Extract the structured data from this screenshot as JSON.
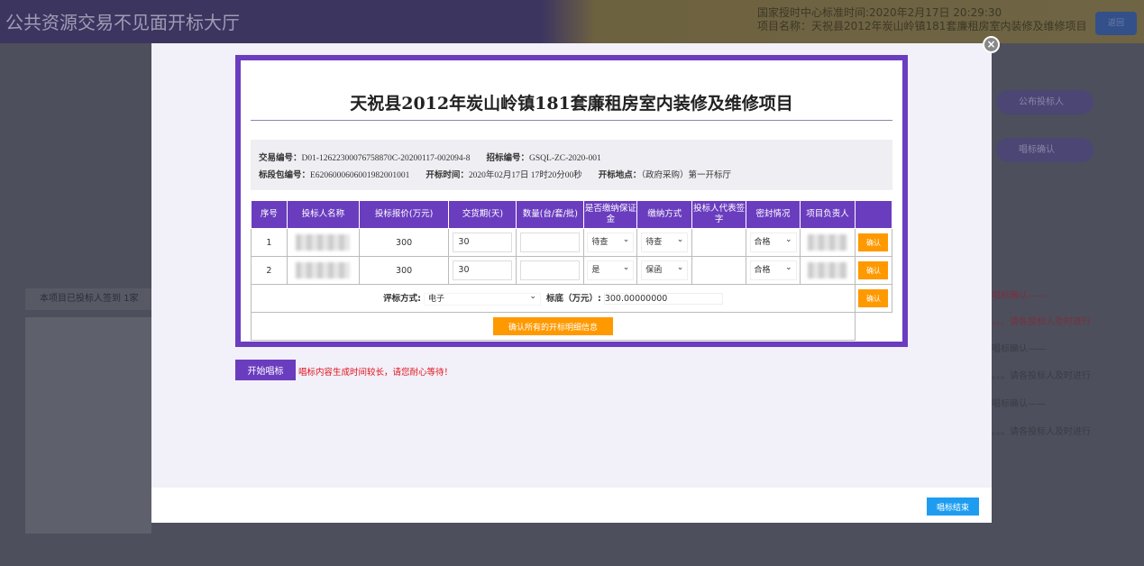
{
  "background": {
    "app_title": "公共资源交易不见面开标大厅",
    "time_line": "国家授时中心标准时间:2020年2月17日 20:29:30",
    "project_line": "项目名称：天祝县2012年炭山岭镇181套廉租房室内装修及维修项目",
    "top_button": "返回",
    "steps": [
      "公布投标人",
      "唱标确认"
    ],
    "left_note": "本项目已投标人签到 1家",
    "log": [
      {
        "text": "唱标确认——",
        "red": true
      },
      {
        "text": "。。。请各投标人及时进行",
        "red": true
      },
      {
        "text": "唱标确认——",
        "red": false
      },
      {
        "text": "。。。请各投标人及时进行",
        "red": false
      },
      {
        "text": "唱标确认——",
        "red": false
      },
      {
        "text": "。。。请各投标人及时进行",
        "red": false
      }
    ]
  },
  "modal": {
    "title": "天祝县2012年炭山岭镇181套廉租房室内装修及维修项目",
    "info": {
      "trade_no_label": "交易编号：",
      "trade_no": "D01-12622300076758870C-20200117-002094-8",
      "tender_no_label": "招标编号：",
      "tender_no": "GSQL-ZC-2020-001",
      "package_no_label": "标段包编号：",
      "package_no": "E6206000606001982001001",
      "open_time_label": "开标时间：",
      "open_time": "2020年02月17日 17时20分00秒",
      "open_place_label": "开标地点：",
      "open_place": "（政府采购）第一开标厅"
    },
    "columns": [
      "序号",
      "投标人名称",
      "投标报价(万元)",
      "交货期(天)",
      "数量(台/套/批)",
      "是否缴纳保证金",
      "缴纳方式",
      "投标人代表签字",
      "密封情况",
      "项目负责人",
      ""
    ],
    "rows": [
      {
        "no": "1",
        "price": "300",
        "delivery": "30",
        "quantity": "",
        "deposit": "待查",
        "pay_method": "待查",
        "seal": "合格",
        "confirm": "确认"
      },
      {
        "no": "2",
        "price": "300",
        "delivery": "30",
        "quantity": "",
        "deposit": "是",
        "pay_method": "保函",
        "seal": "合格",
        "confirm": "确认"
      }
    ],
    "eval_label": "评标方式:",
    "eval_value": "电子",
    "base_label": "标底（万元）:",
    "base_value": "300.00000000",
    "confirm_label": "确认",
    "confirm_all": "确认所有的开标明细信息",
    "start_button": "开始唱标",
    "warning": "唱标内容生成时间较长，请您耐心等待！",
    "end_button": "唱标结束"
  }
}
